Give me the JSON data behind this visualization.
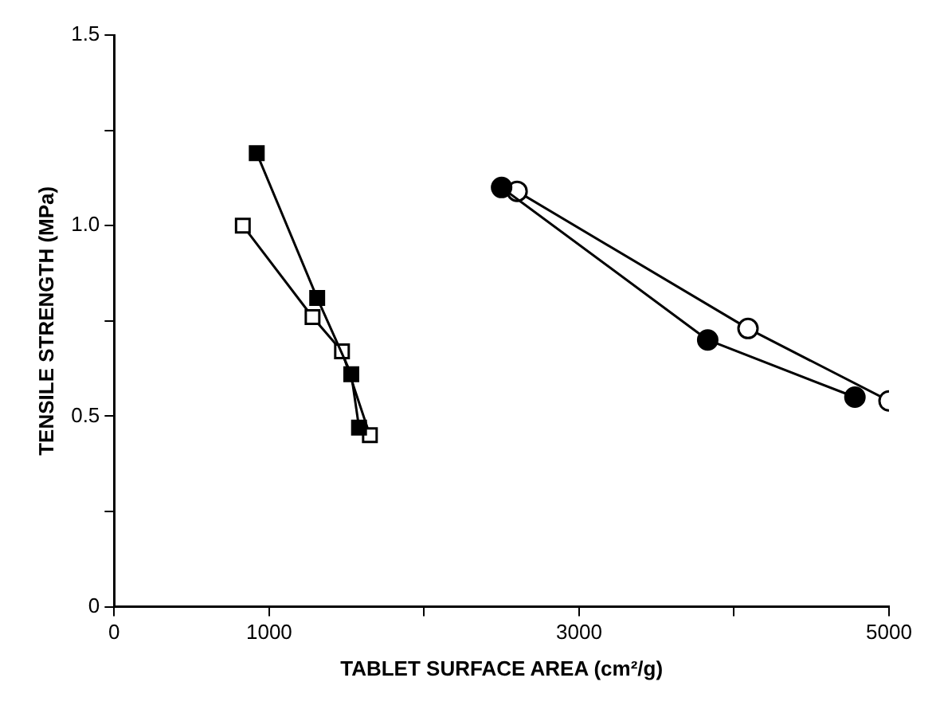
{
  "chart_data": {
    "type": "line",
    "xlabel": "TABLET SURFACE AREA (cm²/g)",
    "ylabel": "TENSILE STRENGTH (MPa)",
    "xlim": [
      0,
      5000
    ],
    "xticks": [
      0,
      1000,
      {
        "value": 2000,
        "label": null
      },
      3000,
      {
        "value": 4000,
        "label": null
      },
      5000
    ],
    "ylim": [
      0,
      1.5
    ],
    "yticks": [
      0,
      {
        "value": 0.25,
        "label": null
      },
      0.5,
      {
        "value": 0.75,
        "label": null
      },
      {
        "value": 1,
        "label": "1.0"
      },
      {
        "value": 1.25,
        "label": null
      },
      1.5
    ],
    "grid": false,
    "legend": false,
    "line_style": "solid",
    "series": [
      {
        "marker": "square",
        "color": "#000000",
        "x": [
          920,
          1310,
          1530,
          1580
        ],
        "values": [
          1.19,
          0.81,
          0.61,
          0.47
        ]
      },
      {
        "marker": "square",
        "color": "#ffffff",
        "x": [
          830,
          1280,
          1470,
          1650
        ],
        "values": [
          1.0,
          0.76,
          0.67,
          0.45
        ]
      },
      {
        "marker": "circle",
        "color": "#000000",
        "x": [
          2500,
          3830,
          4780
        ],
        "values": [
          1.1,
          0.7,
          0.55
        ]
      },
      {
        "marker": "circle",
        "color": "#ffffff",
        "x": [
          2600,
          4090,
          5000
        ],
        "values": [
          1.09,
          0.73,
          0.54
        ]
      }
    ]
  }
}
